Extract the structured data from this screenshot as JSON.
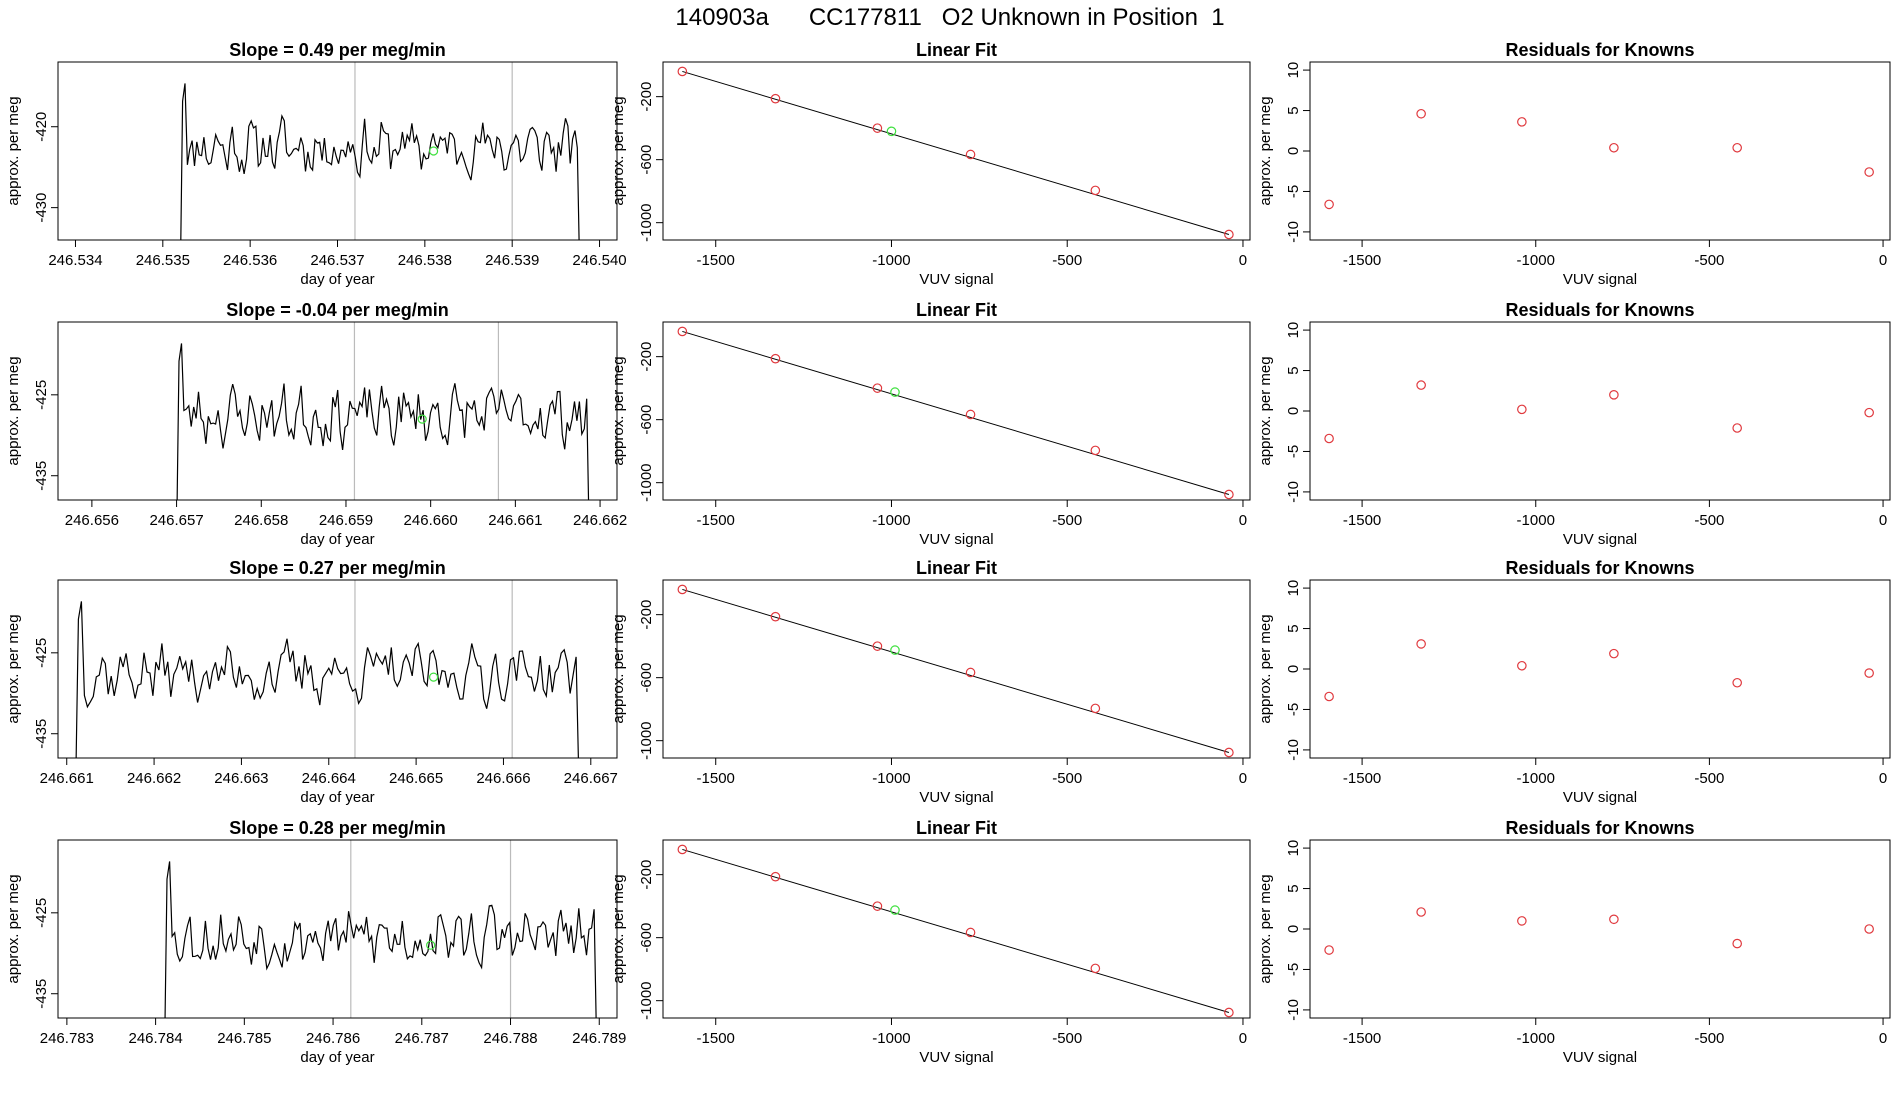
{
  "page": {
    "title": "140903a      CC177811   O2 Unknown in Position  1"
  },
  "colors": {
    "trace": "#000000",
    "known": "#e0393e",
    "unknown": "#3ee03e",
    "vline": "#bbbbbb",
    "fit": "#000000"
  },
  "chart_data": [
    {
      "type": "line",
      "row": 1,
      "panel": "time-series",
      "title": "Slope =  0.49  per meg/min",
      "xlabel": "day of year",
      "ylabel": "approx. per meg",
      "xlim": [
        246.5338,
        246.5402
      ],
      "ylim": [
        -434,
        -412
      ],
      "xticks": [
        "246.534",
        "246.535",
        "246.536",
        "246.537",
        "246.538",
        "246.539",
        "246.540"
      ],
      "yticks": [
        -430,
        -420
      ],
      "vlines": [
        246.5372,
        246.539
      ],
      "trace_start": 246.5352,
      "trace_end": 246.5398,
      "trace_seed": 11,
      "trace_mean": -422.5,
      "trace_amp": 2.6,
      "marker": {
        "x": 246.5381,
        "y": -423
      }
    },
    {
      "type": "scatter",
      "row": 1,
      "panel": "linear-fit",
      "title": "Linear Fit",
      "xlabel": "VUV signal",
      "ylabel": "approx. per meg",
      "xlim": [
        -1650,
        20
      ],
      "ylim": [
        -1110,
        20
      ],
      "xticks": [
        -1500,
        -1000,
        -500,
        0
      ],
      "yticks": [
        -200,
        -600,
        -1000
      ],
      "points": [
        [
          -1595,
          -40
        ],
        [
          -1330,
          -213
        ],
        [
          -1040,
          -400
        ],
        [
          -775,
          -567
        ],
        [
          -420,
          -795
        ],
        [
          -40,
          -1075
        ]
      ],
      "unknown": [
        -1000,
        -420
      ],
      "fit": [
        [
          -1595,
          -40
        ],
        [
          -40,
          -1075
        ]
      ]
    },
    {
      "type": "scatter",
      "row": 1,
      "panel": "residuals",
      "title": "Residuals for Knowns",
      "xlabel": "VUV signal",
      "ylabel": "approx. per meg",
      "xlim": [
        -1650,
        20
      ],
      "ylim": [
        -11,
        11
      ],
      "xticks": [
        -1500,
        -1000,
        -500,
        0
      ],
      "yticks": [
        10,
        5,
        0,
        -5,
        -10
      ],
      "points": [
        [
          -1595,
          -6.6
        ],
        [
          -1330,
          4.6
        ],
        [
          -1040,
          3.6
        ],
        [
          -775,
          0.4
        ],
        [
          -420,
          0.4
        ],
        [
          -40,
          -2.6
        ]
      ]
    },
    {
      "type": "line",
      "row": 2,
      "panel": "time-series",
      "title": "Slope =  -0.04  per meg/min",
      "xlabel": "day of year",
      "ylabel": "approx. per meg",
      "xlim": [
        246.6556,
        246.6622
      ],
      "ylim": [
        -438,
        -416
      ],
      "xticks": [
        "246.656",
        "246.657",
        "246.658",
        "246.659",
        "246.660",
        "246.661",
        "246.662"
      ],
      "yticks": [
        -435,
        -425
      ],
      "vlines": [
        246.6591,
        246.6608
      ],
      "trace_start": 246.657,
      "trace_end": 246.6619,
      "trace_seed": 23,
      "trace_mean": -427.5,
      "trace_amp": 2.8,
      "marker": {
        "x": 246.6599,
        "y": -428
      }
    },
    {
      "type": "scatter",
      "row": 2,
      "panel": "linear-fit",
      "title": "Linear Fit",
      "xlabel": "VUV signal",
      "ylabel": "approx. per meg",
      "xlim": [
        -1650,
        20
      ],
      "ylim": [
        -1110,
        20
      ],
      "xticks": [
        -1500,
        -1000,
        -500,
        0
      ],
      "yticks": [
        -200,
        -600,
        -1000
      ],
      "points": [
        [
          -1595,
          -40
        ],
        [
          -1330,
          -213
        ],
        [
          -1040,
          -400
        ],
        [
          -775,
          -567
        ],
        [
          -420,
          -795
        ],
        [
          -40,
          -1075
        ]
      ],
      "unknown": [
        -990,
        -425
      ],
      "fit": [
        [
          -1595,
          -40
        ],
        [
          -40,
          -1075
        ]
      ]
    },
    {
      "type": "scatter",
      "row": 2,
      "panel": "residuals",
      "title": "Residuals for Knowns",
      "xlabel": "VUV signal",
      "ylabel": "approx. per meg",
      "xlim": [
        -1650,
        20
      ],
      "ylim": [
        -11,
        11
      ],
      "xticks": [
        -1500,
        -1000,
        -500,
        0
      ],
      "yticks": [
        10,
        5,
        0,
        -5,
        -10
      ],
      "points": [
        [
          -1595,
          -3.4
        ],
        [
          -1330,
          3.2
        ],
        [
          -1040,
          0.2
        ],
        [
          -775,
          2.0
        ],
        [
          -420,
          -2.1
        ],
        [
          -40,
          -0.2
        ]
      ]
    },
    {
      "type": "line",
      "row": 3,
      "panel": "time-series",
      "title": "Slope =  0.27  per meg/min",
      "xlabel": "day of year",
      "ylabel": "approx. per meg",
      "xlim": [
        246.6609,
        246.6673
      ],
      "ylim": [
        -438,
        -416
      ],
      "xticks": [
        "246.661",
        "246.662",
        "246.663",
        "246.664",
        "246.665",
        "246.666",
        "246.667"
      ],
      "yticks": [
        -435,
        -425
      ],
      "vlines": [
        246.6643,
        246.6661
      ],
      "trace_start": 246.6611,
      "trace_end": 246.6669,
      "trace_seed": 37,
      "trace_mean": -427.5,
      "trace_amp": 2.8,
      "marker": {
        "x": 246.6652,
        "y": -428
      }
    },
    {
      "type": "scatter",
      "row": 3,
      "panel": "linear-fit",
      "title": "Linear Fit",
      "xlabel": "VUV signal",
      "ylabel": "approx. per meg",
      "xlim": [
        -1650,
        20
      ],
      "ylim": [
        -1110,
        20
      ],
      "xticks": [
        -1500,
        -1000,
        -500,
        0
      ],
      "yticks": [
        -200,
        -600,
        -1000
      ],
      "points": [
        [
          -1595,
          -40
        ],
        [
          -1330,
          -213
        ],
        [
          -1040,
          -400
        ],
        [
          -775,
          -567
        ],
        [
          -420,
          -795
        ],
        [
          -40,
          -1075
        ]
      ],
      "unknown": [
        -990,
        -425
      ],
      "fit": [
        [
          -1595,
          -40
        ],
        [
          -40,
          -1075
        ]
      ]
    },
    {
      "type": "scatter",
      "row": 3,
      "panel": "residuals",
      "title": "Residuals for Knowns",
      "xlabel": "VUV signal",
      "ylabel": "approx. per meg",
      "xlim": [
        -1650,
        20
      ],
      "ylim": [
        -11,
        11
      ],
      "xticks": [
        -1500,
        -1000,
        -500,
        0
      ],
      "yticks": [
        10,
        5,
        0,
        -5,
        -10
      ],
      "points": [
        [
          -1595,
          -3.4
        ],
        [
          -1330,
          3.1
        ],
        [
          -1040,
          0.4
        ],
        [
          -775,
          1.9
        ],
        [
          -420,
          -1.7
        ],
        [
          -40,
          -0.5
        ]
      ]
    },
    {
      "type": "line",
      "row": 4,
      "panel": "time-series",
      "title": "Slope =  0.28  per meg/min",
      "xlabel": "day of year",
      "ylabel": "approx. per meg",
      "xlim": [
        246.7829,
        246.7892
      ],
      "ylim": [
        -438,
        -416
      ],
      "xticks": [
        "246.783",
        "246.784",
        "246.785",
        "246.786",
        "246.787",
        "246.788",
        "246.789"
      ],
      "yticks": [
        -435,
        -425
      ],
      "vlines": [
        246.7862,
        246.788
      ],
      "trace_start": 246.7841,
      "trace_end": 246.789,
      "trace_seed": 53,
      "trace_mean": -428.0,
      "trace_amp": 2.8,
      "marker": {
        "x": 246.7871,
        "y": -429
      }
    },
    {
      "type": "scatter",
      "row": 4,
      "panel": "linear-fit",
      "title": "Linear Fit",
      "xlabel": "VUV signal",
      "ylabel": "approx. per meg",
      "xlim": [
        -1650,
        20
      ],
      "ylim": [
        -1110,
        20
      ],
      "xticks": [
        -1500,
        -1000,
        -500,
        0
      ],
      "yticks": [
        -200,
        -600,
        -1000
      ],
      "points": [
        [
          -1595,
          -40
        ],
        [
          -1330,
          -213
        ],
        [
          -1040,
          -400
        ],
        [
          -775,
          -567
        ],
        [
          -420,
          -795
        ],
        [
          -40,
          -1075
        ]
      ],
      "unknown": [
        -990,
        -425
      ],
      "fit": [
        [
          -1595,
          -40
        ],
        [
          -40,
          -1075
        ]
      ]
    },
    {
      "type": "scatter",
      "row": 4,
      "panel": "residuals",
      "title": "Residuals for Knowns",
      "xlabel": "VUV signal",
      "ylabel": "approx. per meg",
      "xlim": [
        -1650,
        20
      ],
      "ylim": [
        -11,
        11
      ],
      "xticks": [
        -1500,
        -1000,
        -500,
        0
      ],
      "yticks": [
        10,
        5,
        0,
        -5,
        -10
      ],
      "points": [
        [
          -1595,
          -2.6
        ],
        [
          -1330,
          2.1
        ],
        [
          -1040,
          1.0
        ],
        [
          -775,
          1.2
        ],
        [
          -420,
          -1.8
        ],
        [
          -40,
          0.0
        ]
      ]
    }
  ]
}
